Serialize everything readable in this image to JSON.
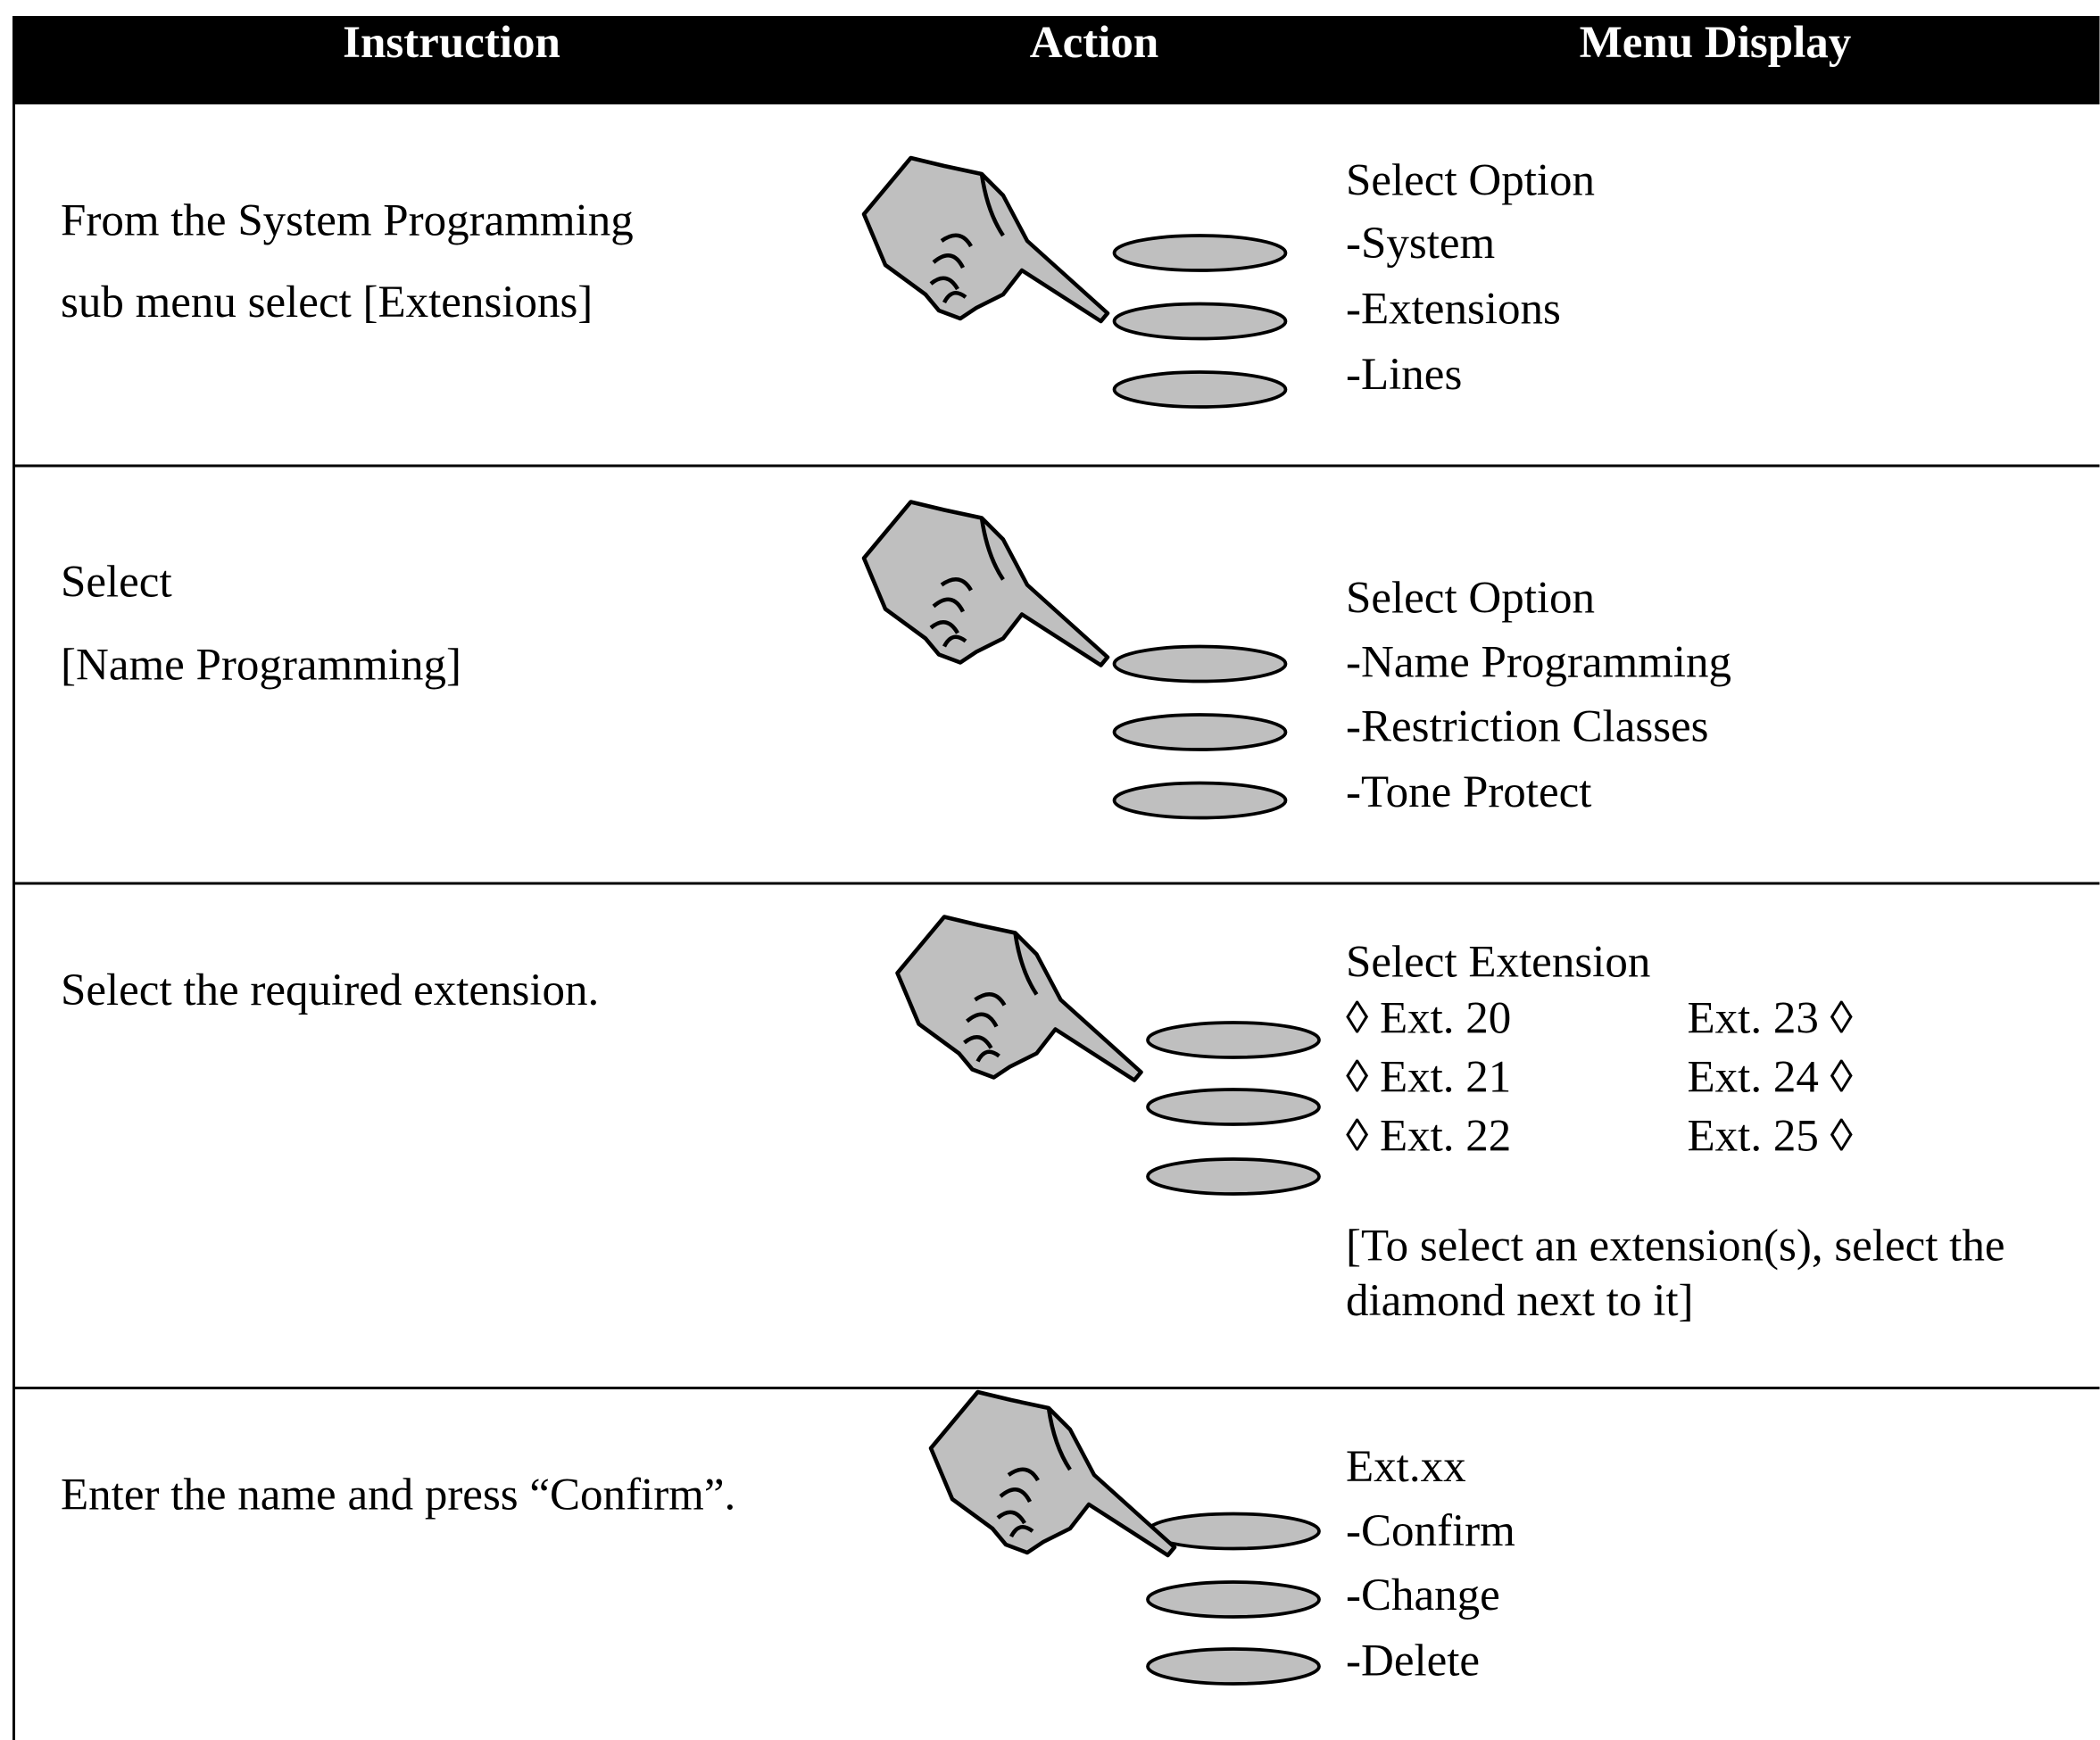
{
  "table": {
    "header": [
      "Instruction",
      "Action",
      "Menu Display"
    ],
    "rows": [
      {
        "instruction": [
          "From the System Programming",
          "sub menu select [Extensions]"
        ],
        "menu": [
          "Select Option",
          "-System",
          "-Extensions",
          "-Lines"
        ]
      },
      {
        "instruction": [
          "Select",
          "[Name Programming]"
        ],
        "menu": [
          "Select Option",
          "-Name Programming",
          "-Restriction Classes",
          "-Tone Protect"
        ]
      },
      {
        "instruction": [
          "Select the required extension."
        ],
        "menu": [
          "Select Extension"
        ],
        "extensions_left": [
          "◊ Ext. 20",
          "◊ Ext. 21",
          "◊ Ext. 22"
        ],
        "extensions_right": [
          "Ext. 23 ◊",
          "Ext. 24 ◊",
          "Ext. 25 ◊"
        ],
        "note": [
          "[To select an extension(s), select the",
          "diamond next to it]"
        ]
      },
      {
        "instruction": [
          "Enter the name and press “Confirm”."
        ],
        "menu": [
          "Ext.xx",
          "-Confirm",
          "-Change",
          "-Delete"
        ]
      }
    ]
  }
}
